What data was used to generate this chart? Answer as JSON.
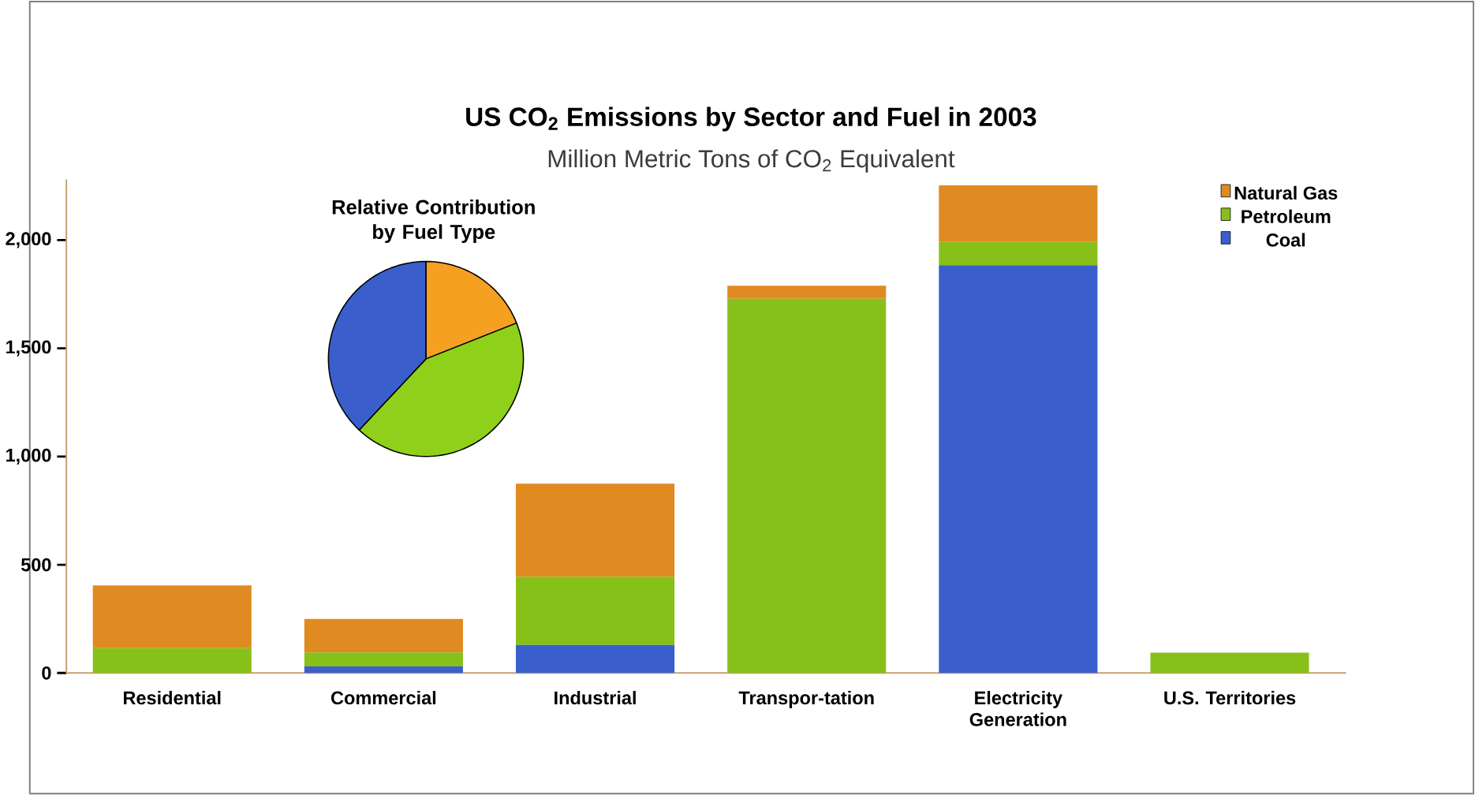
{
  "chart_data": [
    {
      "type": "bar",
      "title": "US CO$_{2}$ Emissions by Sector and Fuel in 2003",
      "subtitle": "Million Metric Tons of CO$_{2}$ Equivalent",
      "categories": [
        "Residential",
        "Commercial",
        "Industrial",
        "Transpor-tation",
        "Electricity Generation",
        "U.S. Territories"
      ],
      "stacked": true,
      "legend": "top right",
      "series": [
        {
          "name": "Coal",
          "color": "#3a5fcd",
          "values": [
            0,
            30,
            130,
            0,
            1884,
            0
          ]
        },
        {
          "name": "Petroleum",
          "color": "#88c01a",
          "values": [
            115,
            65,
            315,
            1729,
            107,
            94
          ]
        },
        {
          "name": "Natural Gas",
          "color": "#e08a22",
          "values": [
            290,
            155,
            430,
            60,
            262,
            0
          ]
        }
      ],
      "ylim": [
        0,
        2280
      ],
      "yticks": [
        {
          "value": 0,
          "label": "0"
        },
        {
          "value": 500,
          "label": "500"
        },
        {
          "value": 1000,
          "label": "1,000"
        },
        {
          "value": 1500,
          "label": "1,500"
        },
        {
          "value": 2000,
          "label": "2,000"
        }
      ]
    },
    {
      "type": "pie",
      "title": "Relative Contribution by Fuel Type",
      "categories": [
        null,
        null,
        null
      ],
      "values": [
        19,
        43,
        38
      ],
      "colors": [
        "#f5a020",
        "#8fd11a",
        "#3a5fcd"
      ]
    }
  ]
}
